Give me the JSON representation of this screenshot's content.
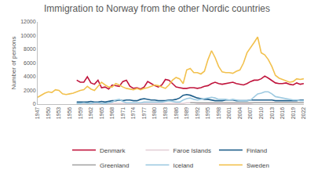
{
  "chart_data": {
    "type": "line",
    "title": "Immigration to Norway from the other Nordic countries",
    "y_label": "Number of persons",
    "x": [
      1947,
      1948,
      1949,
      1950,
      1951,
      1952,
      1953,
      1954,
      1955,
      1956,
      1957,
      1958,
      1959,
      1960,
      1961,
      1962,
      1963,
      1964,
      1965,
      1966,
      1967,
      1968,
      1969,
      1970,
      1971,
      1972,
      1973,
      1974,
      1975,
      1976,
      1977,
      1978,
      1979,
      1980,
      1981,
      1982,
      1983,
      1984,
      1985,
      1986,
      1987,
      1988,
      1989,
      1990,
      1991,
      1992,
      1993,
      1994,
      1995,
      1996,
      1997,
      1998,
      1999,
      2000,
      2001,
      2002,
      2003,
      2004,
      2005,
      2006,
      2007,
      2008,
      2009,
      2010,
      2011,
      2012,
      2013,
      2014,
      2015,
      2016,
      2017,
      2018,
      2019,
      2020,
      2021,
      2022
    ],
    "xlim": [
      1947,
      2022
    ],
    "xticks": [
      1947,
      1950,
      1953,
      1956,
      1959,
      1962,
      1965,
      1968,
      1971,
      1974,
      1977,
      1980,
      1983,
      1986,
      1989,
      1992,
      1995,
      1998,
      2001,
      2004,
      2007,
      2010,
      2013,
      2016,
      2019,
      2022
    ],
    "ylim": [
      0,
      12000
    ],
    "yticks": [
      0,
      2000,
      4000,
      6000,
      8000,
      10000,
      12000
    ],
    "grid": false,
    "legend": "bottom",
    "series": [
      {
        "name": "Denmark",
        "color": "#c0143c",
        "values": [
          null,
          null,
          null,
          null,
          null,
          null,
          null,
          null,
          null,
          null,
          null,
          3500,
          3200,
          3200,
          4000,
          3100,
          2900,
          3500,
          2400,
          2500,
          2200,
          2800,
          2700,
          2600,
          3300,
          3500,
          2600,
          2300,
          2400,
          2200,
          2500,
          3300,
          3000,
          2700,
          2500,
          2800,
          3600,
          3500,
          3000,
          2500,
          2400,
          2300,
          2300,
          2400,
          2400,
          2300,
          2400,
          2600,
          2700,
          3000,
          3200,
          3000,
          2900,
          3000,
          3100,
          3200,
          3000,
          2900,
          2800,
          3000,
          3300,
          3500,
          3500,
          3700,
          4100,
          3800,
          3400,
          3100,
          3000,
          3000,
          3100,
          2900,
          2800,
          3100,
          2900,
          3000
        ]
      },
      {
        "name": "Faroe Islands",
        "color": "#e3cfd6",
        "values": [
          null,
          null,
          null,
          null,
          null,
          null,
          null,
          null,
          null,
          null,
          null,
          100,
          100,
          100,
          100,
          100,
          100,
          100,
          100,
          100,
          100,
          100,
          100,
          100,
          100,
          100,
          100,
          100,
          100,
          100,
          100,
          100,
          100,
          100,
          100,
          100,
          100,
          100,
          100,
          100,
          100,
          100,
          200,
          200,
          200,
          100,
          100,
          100,
          100,
          100,
          100,
          100,
          100,
          100,
          100,
          100,
          100,
          100,
          100,
          100,
          100,
          200,
          200,
          200,
          200,
          200,
          200,
          200,
          200,
          200,
          200,
          200,
          200,
          200,
          200,
          200
        ]
      },
      {
        "name": "Finland",
        "color": "#1f5f8b",
        "values": [
          null,
          null,
          null,
          null,
          null,
          null,
          null,
          null,
          null,
          null,
          null,
          300,
          300,
          300,
          300,
          400,
          300,
          300,
          400,
          300,
          400,
          500,
          500,
          600,
          500,
          600,
          600,
          500,
          500,
          700,
          800,
          700,
          600,
          600,
          500,
          500,
          500,
          600,
          600,
          700,
          900,
          1300,
          1400,
          1300,
          1100,
          900,
          800,
          700,
          700,
          600,
          500,
          500,
          500,
          600,
          600,
          600,
          500,
          500,
          500,
          500,
          600,
          600,
          600,
          600,
          600,
          600,
          600,
          500,
          500,
          500,
          500,
          500,
          500,
          500,
          600,
          600
        ]
      },
      {
        "name": "Greenland",
        "color": "#a6a6a6",
        "values": [
          null,
          null,
          null,
          null,
          null,
          null,
          null,
          null,
          null,
          null,
          null,
          null,
          null,
          null,
          null,
          null,
          null,
          null,
          null,
          null,
          null,
          null,
          null,
          null,
          null,
          null,
          null,
          null,
          null,
          null,
          null,
          null,
          null,
          null,
          null,
          null,
          null,
          null,
          null,
          null,
          null,
          null,
          null,
          200,
          200,
          200,
          200,
          200,
          200,
          200,
          200,
          200,
          200,
          200,
          200,
          200,
          200,
          200,
          200,
          200,
          200,
          200,
          200,
          200,
          200,
          200,
          200,
          200,
          200,
          200,
          200,
          200,
          200,
          200,
          200,
          200
        ]
      },
      {
        "name": "Iceland",
        "color": "#9ecae1",
        "values": [
          null,
          null,
          null,
          null,
          null,
          null,
          null,
          null,
          null,
          null,
          null,
          100,
          100,
          200,
          100,
          100,
          200,
          200,
          100,
          100,
          200,
          300,
          600,
          700,
          400,
          200,
          200,
          200,
          200,
          200,
          300,
          300,
          300,
          300,
          300,
          300,
          400,
          500,
          400,
          300,
          300,
          600,
          800,
          900,
          700,
          600,
          700,
          800,
          900,
          1000,
          900,
          700,
          700,
          700,
          600,
          700,
          600,
          500,
          500,
          500,
          600,
          1000,
          1500,
          1600,
          1800,
          1800,
          1500,
          1100,
          1000,
          900,
          800,
          700,
          600,
          600,
          500,
          500
        ]
      },
      {
        "name": "Sweden",
        "color": "#f2c14e",
        "values": [
          1000,
          1300,
          1600,
          1800,
          1700,
          2100,
          2000,
          1500,
          1400,
          1500,
          1600,
          1800,
          2000,
          2100,
          2600,
          2200,
          2000,
          2600,
          3200,
          2800,
          2500,
          2500,
          3000,
          2800,
          2500,
          2300,
          2200,
          2100,
          2300,
          2100,
          2300,
          2400,
          2600,
          2800,
          2700,
          2500,
          2300,
          2800,
          3500,
          3900,
          3700,
          3000,
          5000,
          5200,
          4600,
          4600,
          4400,
          4800,
          6500,
          7800,
          6800,
          5500,
          4700,
          4600,
          4600,
          4500,
          4800,
          5000,
          6000,
          7500,
          8200,
          9000,
          9800,
          7500,
          7200,
          6500,
          5500,
          4200,
          3800,
          3600,
          3400,
          3200,
          3300,
          3700,
          3600,
          3700
        ]
      }
    ]
  }
}
